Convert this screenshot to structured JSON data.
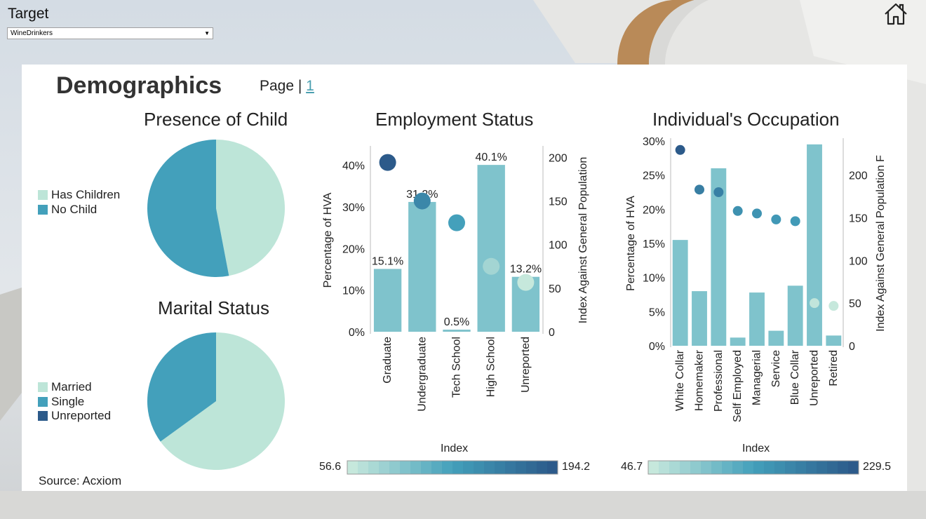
{
  "target": {
    "label": "Target",
    "selected": "WineDrinkers"
  },
  "page": {
    "title": "Demographics",
    "label": "Page | ",
    "number": "1"
  },
  "colors": {
    "light": "#bde5d8",
    "mid": "#43a0bb",
    "dark": "#2c5a8a",
    "bar": "#7fc3cc",
    "accent": "#4a9fb0"
  },
  "icons": {
    "home": "home-icon",
    "dropdown": "chevron-down-icon"
  },
  "source": "Source: Acxiom",
  "chart_data": [
    {
      "type": "pie",
      "title": "Presence of Child",
      "legend": [
        "Has Children",
        "No Child"
      ],
      "values": [
        47,
        53
      ],
      "colors": [
        "#bde5d8",
        "#43a0bb"
      ]
    },
    {
      "type": "pie",
      "title": "Marital Status",
      "legend": [
        "Married",
        "Single",
        "Unreported"
      ],
      "values": [
        65,
        35,
        0
      ],
      "colors": [
        "#bde5d8",
        "#43a0bb",
        "#2c5a8a"
      ]
    },
    {
      "type": "bar",
      "title": "Employment Status",
      "categories": [
        "Graduate",
        "Undergraduate",
        "Tech School",
        "High School",
        "Unreported"
      ],
      "values": [
        15.1,
        31.2,
        0.5,
        40.1,
        13.2
      ],
      "data_labels": [
        "15.1%",
        "31.2%",
        "0.5%",
        "40.1%",
        "13.2%"
      ],
      "index_values": [
        194.2,
        150,
        125,
        75,
        56.6
      ],
      "ylabel": "Percentage of HVA",
      "y2label": "Index Against General Population",
      "ylim": [
        0,
        44
      ],
      "y_ticks": [
        "0%",
        "10%",
        "20%",
        "30%",
        "40%"
      ],
      "y2lim": [
        0,
        210
      ],
      "y2_ticks": [
        "0",
        "50",
        "100",
        "150",
        "200"
      ],
      "color_legend": {
        "title": "Index",
        "min": "56.6",
        "max": "194.2"
      }
    },
    {
      "type": "bar",
      "title": "Individual's Occupation",
      "categories": [
        "White Collar",
        "Homemaker",
        "Professional",
        "Self Employed",
        "Managerial",
        "Service",
        "Blue Collar",
        "Unreported",
        "Retired"
      ],
      "values": [
        15.5,
        8.0,
        26.0,
        1.2,
        7.8,
        2.2,
        8.8,
        29.5,
        1.5
      ],
      "index_values": [
        229.5,
        183,
        180,
        158,
        155,
        148,
        146,
        50,
        46.7
      ],
      "ylabel": "Percentage of HVA",
      "y2label": "Index Against General Population F",
      "ylim": [
        0,
        30
      ],
      "y_ticks": [
        "0%",
        "5%",
        "10%",
        "15%",
        "20%",
        "25%",
        "30%"
      ],
      "y2lim": [
        0,
        240
      ],
      "y2_ticks": [
        "0",
        "50",
        "100",
        "150",
        "200"
      ],
      "color_legend": {
        "title": "Index",
        "min": "46.7",
        "max": "229.5"
      }
    }
  ]
}
